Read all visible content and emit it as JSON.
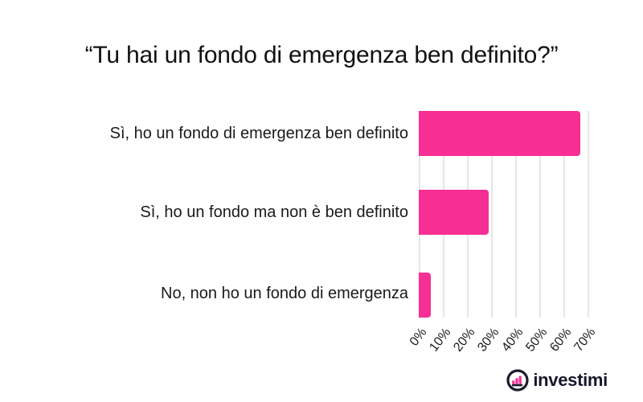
{
  "chart_data": {
    "type": "bar",
    "orientation": "horizontal",
    "title": "“Tu hai un fondo di emergenza ben definito?”",
    "categories": [
      "Sì, ho un fondo di emergenza ben definito",
      "Sì, ho un fondo ma non è ben definito",
      "No, non ho un fondo di emergenza"
    ],
    "values": [
      67,
      29,
      5
    ],
    "unit": "%",
    "x_ticks": [
      "0%",
      "10%",
      "20%",
      "30%",
      "40%",
      "50%",
      "60%",
      "70%"
    ],
    "x_tick_values": [
      0,
      10,
      20,
      30,
      40,
      50,
      60,
      70
    ],
    "xlim": [
      0,
      75
    ],
    "ylabel": "",
    "xlabel": "",
    "grid": "vertical",
    "legend": "none",
    "tick_rotation_deg": -52
  },
  "footer": {
    "brand": "investimi",
    "logo_icon": "bar-chart-circle-icon"
  },
  "colors": {
    "bar_pink": "#f72e93",
    "gridline": "#e6e6e6",
    "text_dark": "#1a1a1a",
    "logo_dark": "#1b1b2f",
    "background": "#ffffff"
  }
}
